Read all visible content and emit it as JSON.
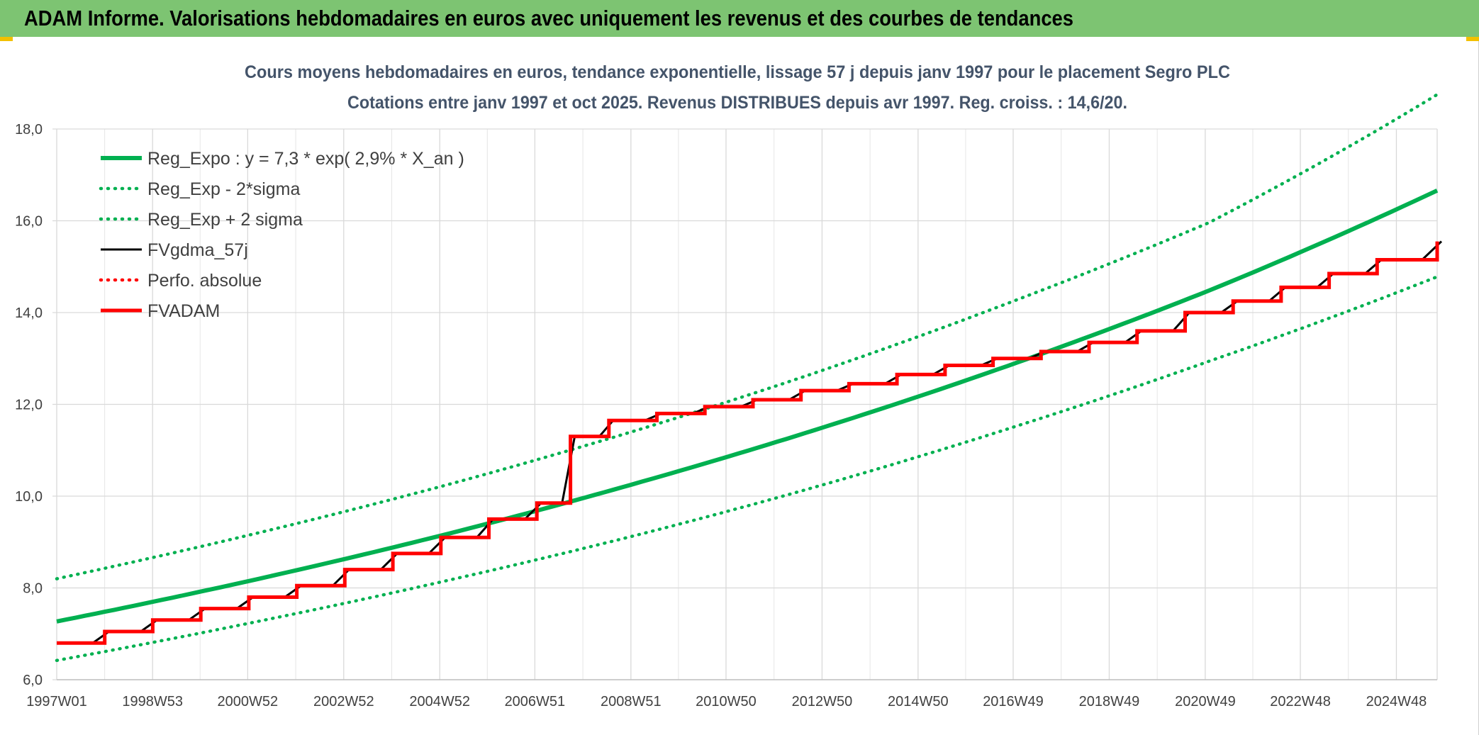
{
  "banner": {
    "title": "ADAM Informe. Valorisations hebdomadaires en euros avec uniquement les revenus et des courbes de tendances",
    "background": "#7dc472"
  },
  "chart_data": {
    "type": "line",
    "title_line1": "Cours moyens hebdomadaires en euros, tendance exponentielle, lissage 57 j depuis janv 1997 pour le placement Segro PLC",
    "title_line2": "Cotations entre janv 1997 et oct 2025. Revenus DISTRIBUES depuis avr 1997. Reg. croiss. : 14,6/20.",
    "x_ticks": [
      "1997W01",
      "1998W53",
      "2000W52",
      "2002W52",
      "2004W52",
      "2006W51",
      "2008W51",
      "2010W50",
      "2012W50",
      "2014W50",
      "2016W49",
      "2018W49",
      "2020W49",
      "2022W48",
      "2024W48"
    ],
    "x_range": [
      "1997W01",
      "2025W40"
    ],
    "ylim": [
      6.0,
      18.0
    ],
    "y_ticks": [
      "6,0",
      "8,0",
      "10,0",
      "12,0",
      "14,0",
      "16,0",
      "18,0"
    ],
    "grid": true,
    "legend_position": "top-left",
    "series": [
      {
        "name": "Reg_Expo : y = 7,3 * exp( 2,9% *  X_an )",
        "color": "#00b050",
        "style": "solid",
        "x": [
          1997.0,
          2001.0,
          2005.0,
          2009.0,
          2013.0,
          2017.0,
          2021.0,
          2025.75
        ],
        "values": [
          7.27,
          8.15,
          9.14,
          10.26,
          11.51,
          12.91,
          14.48,
          16.66
        ]
      },
      {
        "name": "Reg_Exp - 2*sigma",
        "color": "#00b050",
        "style": "dotted",
        "x": [
          1997.0,
          2001.0,
          2005.0,
          2009.0,
          2013.0,
          2017.0,
          2021.0,
          2025.75
        ],
        "values": [
          6.42,
          7.23,
          8.13,
          9.13,
          10.26,
          11.53,
          12.94,
          14.78
        ]
      },
      {
        "name": "Reg_Exp + 2 sigma",
        "color": "#00b050",
        "style": "dotted",
        "x": [
          1997.0,
          2001.0,
          2005.0,
          2009.0,
          2013.0,
          2017.0,
          2021.0,
          2025.75
        ],
        "values": [
          8.2,
          9.15,
          10.21,
          11.41,
          12.76,
          14.28,
          15.96,
          18.75
        ]
      },
      {
        "name": "FVgdma_57j",
        "color": "#000000",
        "style": "solid",
        "x": [
          1997.0,
          1998.0,
          1999.0,
          2000.0,
          2001.0,
          2002.0,
          2003.0,
          2004.0,
          2005.0,
          2006.0,
          2007.0,
          2007.7,
          2008.5,
          2009.5,
          2010.5,
          2011.5,
          2012.5,
          2013.5,
          2014.5,
          2015.5,
          2016.5,
          2017.5,
          2018.5,
          2019.5,
          2020.5,
          2021.5,
          2022.5,
          2023.5,
          2024.5,
          2025.75
        ],
        "values": [
          6.8,
          7.05,
          7.3,
          7.55,
          7.8,
          8.05,
          8.4,
          8.75,
          9.1,
          9.5,
          9.85,
          11.3,
          11.65,
          11.8,
          11.95,
          12.1,
          12.3,
          12.45,
          12.65,
          12.85,
          13.0,
          13.15,
          13.35,
          13.6,
          14.0,
          14.25,
          14.55,
          14.85,
          15.15,
          15.55
        ]
      },
      {
        "name": "Perfo. absolue",
        "color": "#ff0000",
        "style": "dotted",
        "x": [
          1997.0,
          2025.75
        ],
        "values": [
          6.8,
          15.55
        ]
      },
      {
        "name": "FVADAM",
        "color": "#ff0000",
        "style": "step",
        "x": [
          1997.0,
          1998.0,
          1999.0,
          2000.0,
          2001.0,
          2002.0,
          2003.0,
          2004.0,
          2005.0,
          2006.0,
          2007.0,
          2007.7,
          2008.5,
          2009.5,
          2010.5,
          2011.5,
          2012.5,
          2013.5,
          2014.5,
          2015.5,
          2016.5,
          2017.5,
          2018.5,
          2019.5,
          2020.5,
          2021.5,
          2022.5,
          2023.5,
          2024.5,
          2025.75
        ],
        "values": [
          6.8,
          7.05,
          7.3,
          7.55,
          7.8,
          8.05,
          8.4,
          8.75,
          9.1,
          9.5,
          9.85,
          11.3,
          11.65,
          11.8,
          11.95,
          12.1,
          12.3,
          12.45,
          12.65,
          12.85,
          13.0,
          13.15,
          13.35,
          13.6,
          14.0,
          14.25,
          14.55,
          14.85,
          15.15,
          15.55
        ]
      }
    ]
  }
}
